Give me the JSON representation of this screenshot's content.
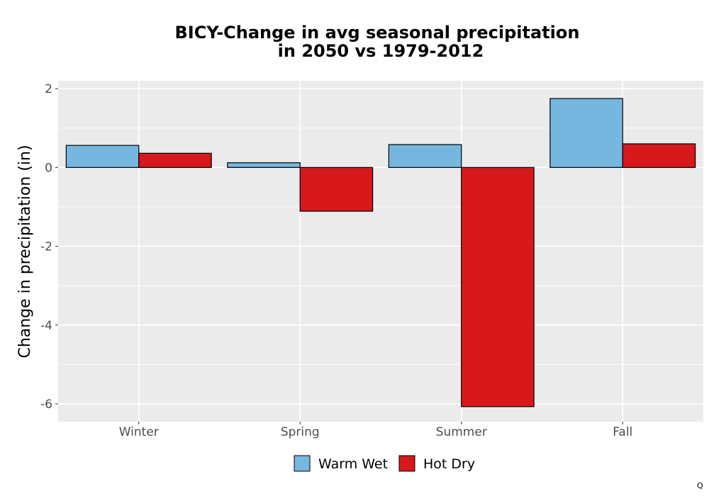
{
  "chart_data": {
    "type": "bar",
    "title_lines": [
      "BICY-Change in avg seasonal precipitation",
      "in 2050 vs 1979-2012"
    ],
    "xlabel": "",
    "ylabel": "Change in precipitation (in)",
    "categories": [
      "Winter",
      "Spring",
      "Summer",
      "Fall"
    ],
    "series": [
      {
        "name": "Warm Wet",
        "color": "#76b7e0",
        "values": [
          0.56,
          0.12,
          0.58,
          1.75
        ]
      },
      {
        "name": "Hot Dry",
        "color": "#d7191c",
        "values": [
          0.36,
          -1.11,
          -6.07,
          0.6
        ]
      }
    ],
    "ylim": [
      -6.45,
      2.2
    ],
    "yticks": [
      2,
      0,
      -2,
      -4,
      -6
    ],
    "ytick_labels": [
      "2",
      "0",
      "-2",
      "-4",
      "-6"
    ],
    "grid": true,
    "legend_position": "bottom",
    "background_color": "#ebebeb",
    "grid_color": "#ffffff",
    "bar_outline_color": "#000000"
  },
  "corner_mark": "Q"
}
